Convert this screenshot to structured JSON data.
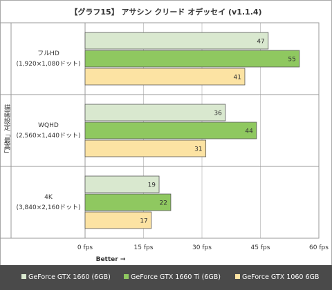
{
  "chart_data": {
    "type": "bar",
    "orientation": "horizontal",
    "title": "【グラフ15】 アサシン クリード オデッセイ (v1.1.4)",
    "ylabel": "描画設定「最高」",
    "xlabel": "Better →",
    "xlim": [
      0,
      60
    ],
    "xticks": [
      "0 fps",
      "15 fps",
      "30 fps",
      "45 fps",
      "60 fps"
    ],
    "xtick_values": [
      0,
      15,
      30,
      45,
      60
    ],
    "categories": [
      {
        "name": "フルHD",
        "sub": "(1,920×1,080ドット)"
      },
      {
        "name": "WQHD",
        "sub": "(2,560×1,440ドット)"
      },
      {
        "name": "4K",
        "sub": "(3,840×2,160ドット)"
      }
    ],
    "series": [
      {
        "name": "GeForce GTX 1660 (6GB)",
        "color": "#d9e8cf",
        "values": [
          47,
          36,
          19
        ]
      },
      {
        "name": "GeForce GTX 1660 Ti (6GB)",
        "color": "#8fc860",
        "values": [
          55,
          44,
          22
        ]
      },
      {
        "name": "GeForce GTX 1060 6GB",
        "color": "#fce3a3",
        "values": [
          41,
          31,
          17
        ]
      }
    ],
    "grid": true,
    "legend_position": "bottom"
  }
}
